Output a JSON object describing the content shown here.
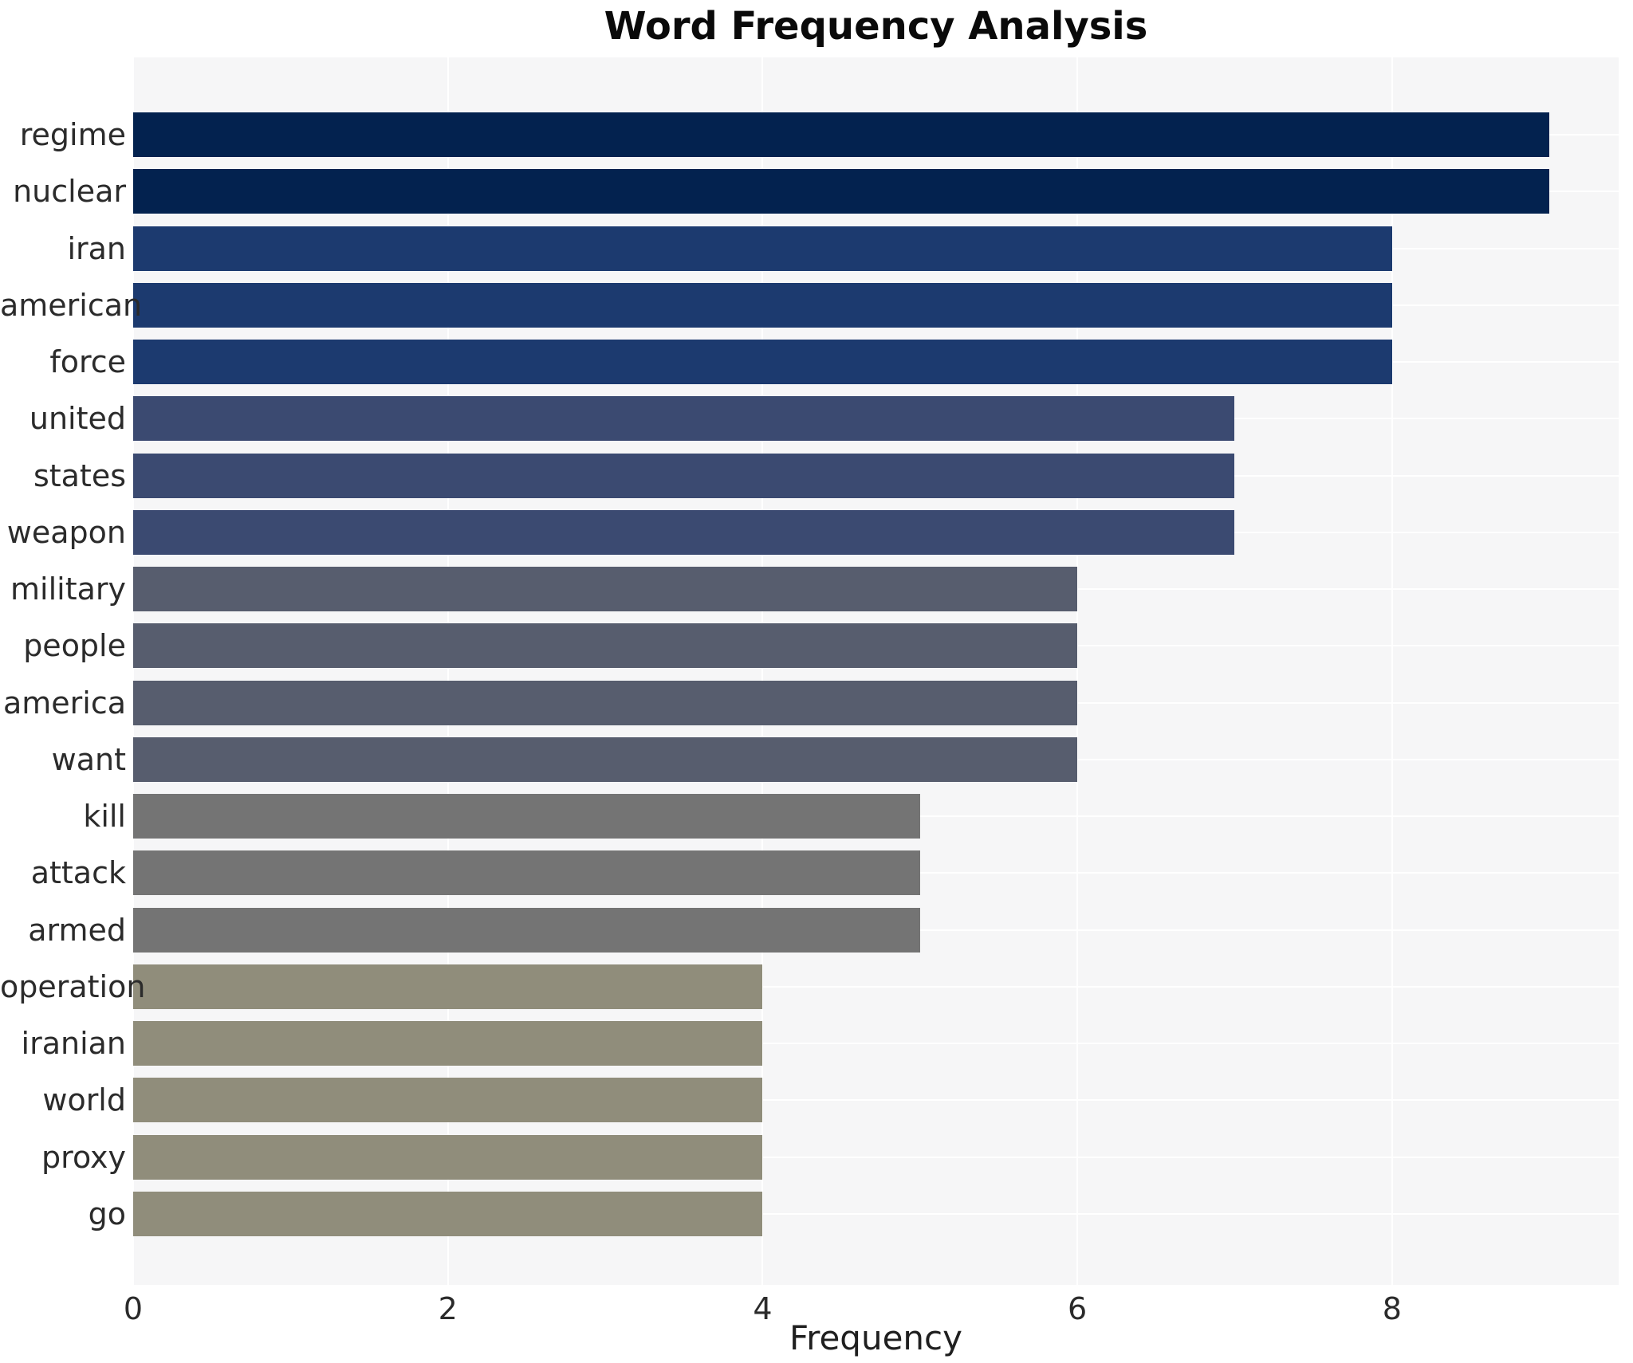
{
  "chart_data": {
    "type": "bar",
    "orientation": "horizontal",
    "title": "Word Frequency Analysis",
    "xlabel": "Frequency",
    "ylabel": "",
    "categories": [
      "regime",
      "nuclear",
      "iran",
      "american",
      "force",
      "united",
      "states",
      "weapon",
      "military",
      "people",
      "america",
      "want",
      "kill",
      "attack",
      "armed",
      "operation",
      "iranian",
      "world",
      "proxy",
      "go"
    ],
    "values": [
      9,
      9,
      8,
      8,
      8,
      7,
      7,
      7,
      6,
      6,
      6,
      6,
      5,
      5,
      5,
      4,
      4,
      4,
      4,
      4
    ],
    "xticks": [
      0,
      2,
      4,
      6,
      8
    ],
    "xlim": [
      0,
      9.44
    ],
    "grid": true,
    "legend": false,
    "colors": {
      "plot_background": "#f6f6f7",
      "grid_line": "#ffffff",
      "title_text": "#0a0a0a",
      "label_text": "#2b2b2b",
      "value_9": "#03224f",
      "value_8": "#1c3a6f",
      "value_7": "#3b4a71",
      "value_6": "#575d6e",
      "value_5": "#747474",
      "value_4": "#908d7b"
    }
  }
}
